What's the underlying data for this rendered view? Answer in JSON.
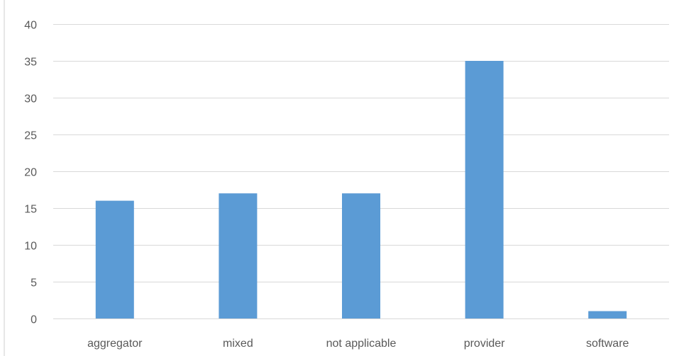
{
  "chart_data": {
    "type": "bar",
    "categories": [
      "aggregator",
      "mixed",
      "not applicable",
      "provider",
      "software"
    ],
    "values": [
      16,
      17,
      17,
      35,
      1
    ],
    "ylim": [
      0,
      40
    ],
    "yticks": [
      0,
      5,
      10,
      15,
      20,
      25,
      30,
      35,
      40
    ],
    "grid": true,
    "legend": "none",
    "bar_color": "#5b9bd5",
    "grid_color": "#d9d9d9",
    "label_color": "#595959"
  }
}
